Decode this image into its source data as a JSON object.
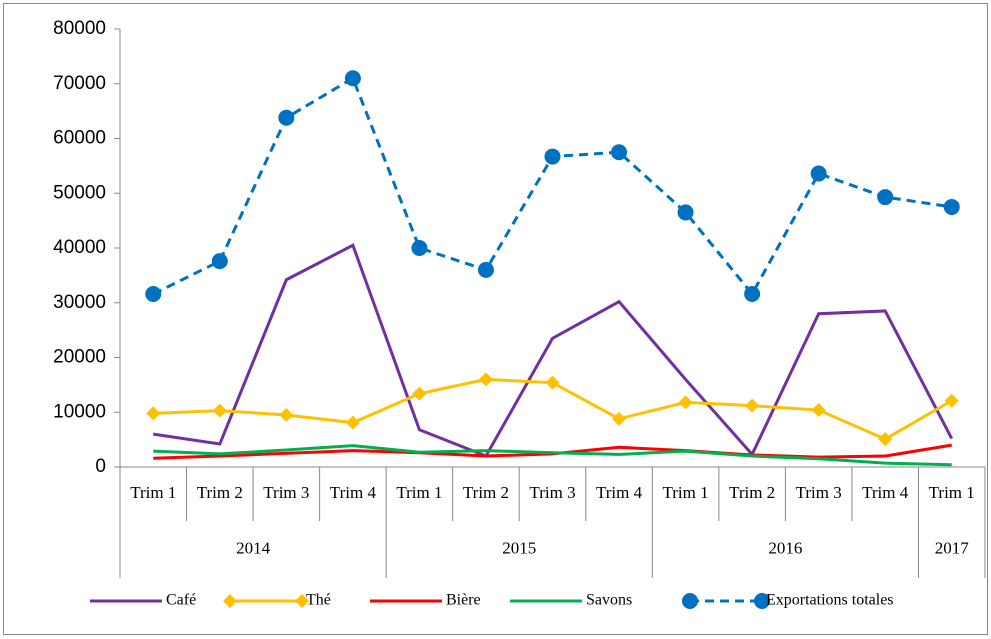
{
  "chart_data": {
    "type": "line",
    "groups": [
      {
        "name": "2014",
        "categories": [
          "Trim 1",
          "Trim 2",
          "Trim 3",
          "Trim 4"
        ]
      },
      {
        "name": "2015",
        "categories": [
          "Trim 1",
          "Trim 2",
          "Trim 3",
          "Trim 4"
        ]
      },
      {
        "name": "2016",
        "categories": [
          "Trim 1",
          "Trim 2",
          "Trim 3",
          "Trim 4"
        ]
      },
      {
        "name": "2017",
        "categories": [
          "Trim 1"
        ]
      }
    ],
    "series": [
      {
        "name": "Café",
        "color": "#7030a0",
        "marker": "none",
        "dashed": false,
        "values": [
          6000,
          4200,
          34200,
          40500,
          6800,
          2000,
          23500,
          30200,
          16000,
          2300,
          28000,
          28500,
          5200
        ]
      },
      {
        "name": "Thé",
        "color": "#ffc000",
        "marker": "diamond",
        "dashed": false,
        "values": [
          9800,
          10300,
          9500,
          8100,
          13400,
          16000,
          15400,
          8800,
          11800,
          11200,
          10400,
          5100,
          12100
        ]
      },
      {
        "name": "Bière",
        "color": "#ff0000",
        "marker": "none",
        "dashed": false,
        "values": [
          1600,
          2000,
          2500,
          3000,
          2600,
          2000,
          2400,
          3600,
          3000,
          2200,
          1800,
          2000,
          4000
        ]
      },
      {
        "name": "Savons",
        "color": "#00b050",
        "marker": "none",
        "dashed": false,
        "values": [
          2900,
          2400,
          3100,
          3900,
          2700,
          3000,
          2600,
          2300,
          2900,
          2000,
          1500,
          700,
          400
        ]
      },
      {
        "name": "Exportations totales",
        "color": "#0070c0",
        "marker": "circle",
        "dashed": true,
        "values": [
          31600,
          37600,
          63800,
          71000,
          40000,
          36000,
          56700,
          57500,
          46500,
          31600,
          53600,
          49300,
          47500
        ]
      }
    ],
    "ylim": [
      0,
      80000
    ],
    "yticks": [
      0,
      10000,
      20000,
      30000,
      40000,
      50000,
      60000,
      70000,
      80000
    ],
    "grid": false,
    "legend": "bottom"
  }
}
